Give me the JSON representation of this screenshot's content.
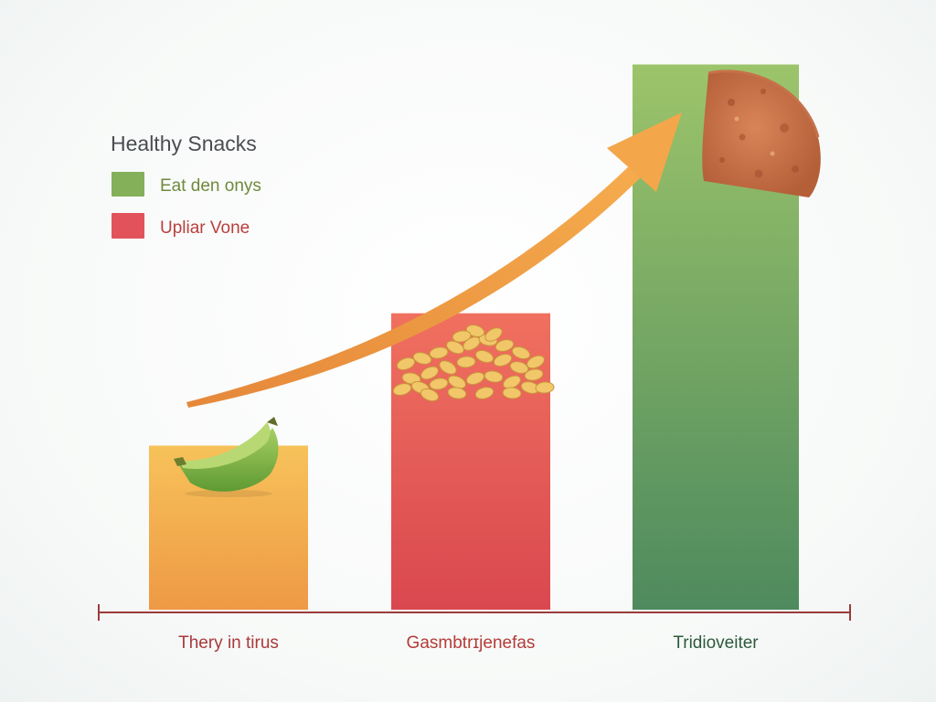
{
  "chart_data": {
    "type": "bar",
    "title": "",
    "xlabel": "",
    "ylabel": "",
    "categories": [
      "Thery in tirus",
      "Gasmbtrɪjenefas",
      "Tridioveiter"
    ],
    "values": [
      3.1,
      5.6,
      10.3
    ],
    "ylim": [
      0,
      11
    ],
    "grid": false,
    "legend": {
      "title": "Healthy Snacks",
      "placement": "top-left",
      "entries": [
        {
          "label": "Eat den onys",
          "color": "#84b05a",
          "text_color": "#6e8a3c"
        },
        {
          "label": "Upliar Vone",
          "color": "#e2525a",
          "text_color": "#b8403e"
        }
      ]
    },
    "bar_colors": [
      {
        "top": "#f7c25a",
        "bottom": "#ee9945"
      },
      {
        "top": "#f0705f",
        "bottom": "#d9484f"
      },
      {
        "top": "#9cc46a",
        "bottom": "#4e8a5e"
      }
    ],
    "tick_label_colors": [
      "#a83a3a",
      "#b33c38",
      "#2d5a3a"
    ],
    "axis_color": "#9b3b3b",
    "trend_arrow_color": "#f2a449",
    "decorations": [
      "banana-icon",
      "peanuts-icon",
      "cookie-icon"
    ]
  }
}
